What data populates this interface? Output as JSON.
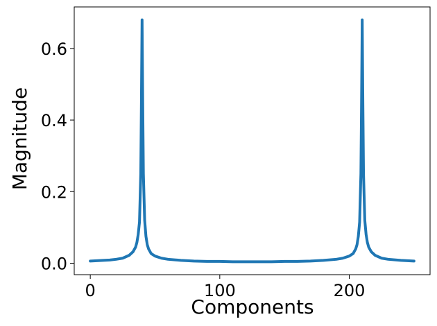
{
  "chart_data": {
    "type": "line",
    "title": "",
    "xlabel": "Components",
    "ylabel": "Magnitude",
    "xlim": [
      -12.4,
      262.4
    ],
    "ylim": [
      -0.032,
      0.716
    ],
    "grid": false,
    "legend": "none",
    "line_color": "#1f77b4",
    "xticks": [
      {
        "value": 0,
        "label": "0"
      },
      {
        "value": 100,
        "label": "100"
      },
      {
        "value": 200,
        "label": "200"
      }
    ],
    "yticks": [
      {
        "value": 0.0,
        "label": "0.0"
      },
      {
        "value": 0.2,
        "label": "0.2"
      },
      {
        "value": 0.4,
        "label": "0.4"
      },
      {
        "value": 0.6,
        "label": "0.6"
      }
    ],
    "series": [
      {
        "x": [
          0,
          5,
          10,
          15,
          20,
          25,
          30,
          33,
          35,
          36,
          37,
          38,
          39,
          39.5,
          40,
          40.5,
          41,
          42,
          43,
          44,
          45,
          47,
          50,
          55,
          60,
          70,
          80,
          90,
          100,
          110,
          120,
          125,
          130,
          140,
          150,
          160,
          170,
          180,
          190,
          195,
          200,
          203,
          205,
          206,
          207,
          208,
          209,
          209.5,
          210,
          210.5,
          211,
          212,
          213,
          214,
          215,
          217,
          220,
          225,
          230,
          240,
          250
        ],
        "y": [
          0.006,
          0.007,
          0.008,
          0.009,
          0.011,
          0.014,
          0.022,
          0.032,
          0.045,
          0.058,
          0.08,
          0.115,
          0.25,
          0.45,
          0.68,
          0.45,
          0.25,
          0.12,
          0.075,
          0.052,
          0.04,
          0.027,
          0.02,
          0.014,
          0.011,
          0.008,
          0.006,
          0.005,
          0.005,
          0.004,
          0.004,
          0.004,
          0.004,
          0.004,
          0.005,
          0.005,
          0.006,
          0.008,
          0.011,
          0.014,
          0.02,
          0.027,
          0.04,
          0.052,
          0.075,
          0.115,
          0.25,
          0.45,
          0.68,
          0.45,
          0.25,
          0.12,
          0.08,
          0.058,
          0.045,
          0.032,
          0.022,
          0.014,
          0.011,
          0.008,
          0.006
        ]
      }
    ]
  }
}
